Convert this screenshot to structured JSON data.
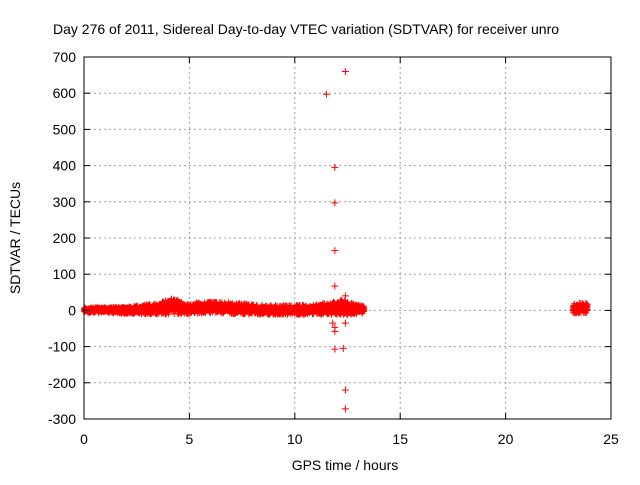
{
  "chart_data": {
    "type": "scatter",
    "title": "Day 276 of 2011, Sidereal Day-to-day VTEC variation (SDTVAR) for receiver unro",
    "xlabel": "GPS time / hours",
    "ylabel": "SDTVAR / TECUs",
    "xlim": [
      0,
      25
    ],
    "ylim": [
      -300,
      700
    ],
    "xticks": [
      0,
      5,
      10,
      15,
      20,
      25
    ],
    "yticks": [
      -300,
      -200,
      -100,
      0,
      100,
      200,
      300,
      400,
      500,
      600,
      700
    ],
    "grid": true,
    "legend": "none",
    "marker": "+",
    "series_color": "#ff0000",
    "bands": [
      {
        "x_start": 0.0,
        "x_end": 13.3,
        "baseline": 0
      },
      {
        "x_start": 23.2,
        "x_end": 23.9,
        "baseline": 5
      }
    ],
    "band_envelope": [
      {
        "x": 0.0,
        "low": -6,
        "high": 8
      },
      {
        "x": 2.0,
        "low": -9,
        "high": 10
      },
      {
        "x": 3.5,
        "low": -12,
        "high": 20
      },
      {
        "x": 4.2,
        "low": -10,
        "high": 35
      },
      {
        "x": 5.0,
        "low": -10,
        "high": 16
      },
      {
        "x": 5.6,
        "low": -8,
        "high": 26
      },
      {
        "x": 7.0,
        "low": -10,
        "high": 22
      },
      {
        "x": 9.0,
        "low": -12,
        "high": 14
      },
      {
        "x": 11.0,
        "low": -12,
        "high": 16
      },
      {
        "x": 12.3,
        "low": -15,
        "high": 30
      },
      {
        "x": 13.3,
        "low": -8,
        "high": 12
      }
    ],
    "outliers": [
      {
        "x": 12.4,
        "y": 660
      },
      {
        "x": 11.5,
        "y": 597
      },
      {
        "x": 11.9,
        "y": 395
      },
      {
        "x": 11.9,
        "y": 297
      },
      {
        "x": 11.9,
        "y": 165
      },
      {
        "x": 11.9,
        "y": 67
      },
      {
        "x": 12.4,
        "y": 40
      },
      {
        "x": 12.2,
        "y": 15
      },
      {
        "x": 11.8,
        "y": -35
      },
      {
        "x": 12.4,
        "y": -35
      },
      {
        "x": 11.9,
        "y": -47
      },
      {
        "x": 11.9,
        "y": -58
      },
      {
        "x": 11.9,
        "y": -107
      },
      {
        "x": 12.3,
        "y": -105
      },
      {
        "x": 12.4,
        "y": -220
      },
      {
        "x": 12.4,
        "y": -272
      }
    ]
  }
}
